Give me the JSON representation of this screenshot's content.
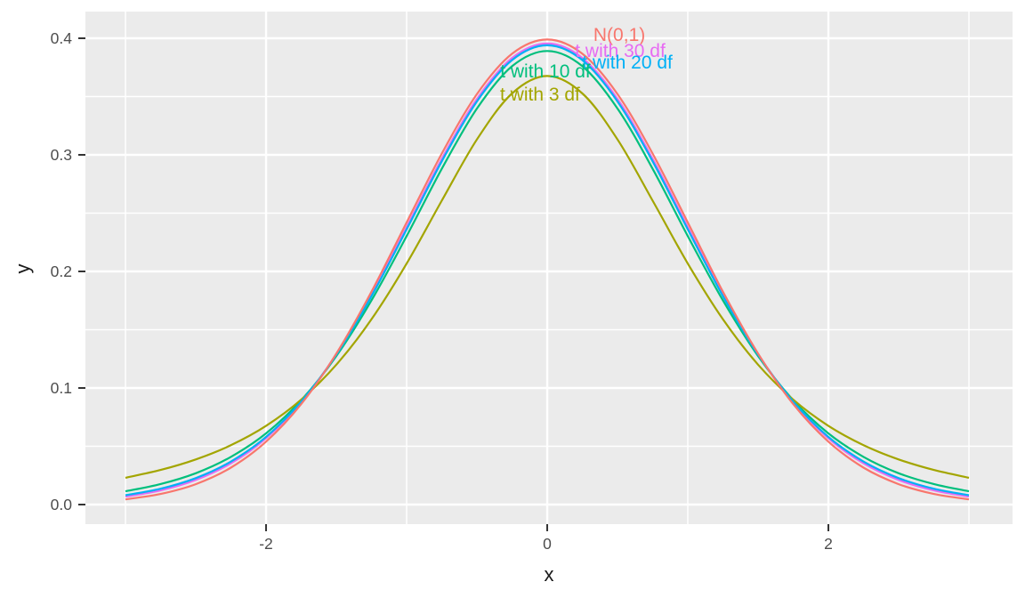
{
  "chart_data": {
    "type": "line",
    "title": "",
    "xlabel": "x",
    "ylabel": "y",
    "xlim": [
      -3.285,
      3.31
    ],
    "ylim": [
      -0.0168,
      0.4229
    ],
    "x_ticks": {
      "values": [
        -2,
        0,
        2
      ],
      "labels": [
        "-2",
        "0",
        "2"
      ]
    },
    "y_ticks": {
      "values": [
        0.0,
        0.1,
        0.2,
        0.3,
        0.4
      ],
      "labels": [
        "0.0",
        "0.1",
        "0.2",
        "0.3",
        "0.4"
      ]
    },
    "x_minor_ticks": [
      -3,
      -1,
      1,
      3
    ],
    "y_minor_ticks": [
      0.05,
      0.15,
      0.25,
      0.35
    ],
    "grid": "on",
    "legend": "none (direct colored annotations)",
    "style": {
      "panel_bg": "#EBEBEB",
      "grid_color": "#FFFFFF",
      "tick_mark_color": "#333333",
      "tick_label_color": "#4D4D4D",
      "axis_title_color": "#1a1a1a"
    },
    "x": [
      -3,
      -2.75,
      -2.5,
      -2.25,
      -2,
      -1.75,
      -1.5,
      -1.25,
      -1,
      -0.75,
      -0.5,
      -0.25,
      0,
      0.25,
      0.5,
      0.75,
      1,
      1.25,
      1.5,
      1.75,
      2,
      2.25,
      2.5,
      2.75,
      3
    ],
    "series": [
      {
        "name": "t with 30 df",
        "color": "#E76BF3",
        "values": [
          0.0068,
          0.0121,
          0.0211,
          0.0353,
          0.0568,
          0.0877,
          0.129,
          0.1801,
          0.238,
          0.2966,
          0.3479,
          0.3831,
          0.3956,
          0.3831,
          0.3479,
          0.2966,
          0.238,
          0.1801,
          0.129,
          0.0877,
          0.0568,
          0.0353,
          0.0211,
          0.0121,
          0.0068
        ]
      },
      {
        "name": "t with 10 df",
        "color": "#00BF7D",
        "values": [
          0.0114,
          0.0176,
          0.0269,
          0.0409,
          0.0611,
          0.0895,
          0.1274,
          0.1751,
          0.2303,
          0.288,
          0.3397,
          0.376,
          0.3891,
          0.376,
          0.3397,
          0.288,
          0.2303,
          0.1751,
          0.1274,
          0.0895,
          0.0611,
          0.0409,
          0.0269,
          0.0176,
          0.0114
        ]
      },
      {
        "name": "t with 3 df",
        "color": "#A3A500",
        "values": [
          0.023,
          0.0297,
          0.0387,
          0.0509,
          0.0675,
          0.09,
          0.12,
          0.1589,
          0.2067,
          0.2607,
          0.3132,
          0.3527,
          0.3676,
          0.3527,
          0.3132,
          0.2607,
          0.2067,
          0.1589,
          0.12,
          0.09,
          0.0675,
          0.0509,
          0.0387,
          0.0297,
          0.023
        ]
      },
      {
        "name": "t with 20 df",
        "color": "#00B0F6",
        "values": [
          0.008,
          0.0136,
          0.0227,
          0.0369,
          0.0581,
          0.0883,
          0.1286,
          0.1788,
          0.2361,
          0.2944,
          0.3458,
          0.3813,
          0.394,
          0.3813,
          0.3458,
          0.2944,
          0.2361,
          0.1788,
          0.1286,
          0.0883,
          0.0581,
          0.0369,
          0.0227,
          0.0136,
          0.008
        ]
      },
      {
        "name": "N(0,1)",
        "color": "#F8766D",
        "values": [
          0.0044,
          0.0091,
          0.0175,
          0.0317,
          0.054,
          0.0862,
          0.1295,
          0.1826,
          0.242,
          0.3011,
          0.3521,
          0.3867,
          0.3989,
          0.3867,
          0.3521,
          0.3011,
          0.242,
          0.1826,
          0.1295,
          0.0862,
          0.054,
          0.0317,
          0.0175,
          0.0091,
          0.0044
        ]
      }
    ],
    "annotations": [
      {
        "text": "N(0,1)",
        "x": 0.513,
        "y": 0.403,
        "color": "#F8766D"
      },
      {
        "text": "t with 30 df",
        "x": 0.519,
        "y": 0.3893,
        "color": "#E76BF3"
      },
      {
        "text": "t with 20 df",
        "x": 0.57,
        "y": 0.3794,
        "color": "#00B0F6"
      },
      {
        "text": "t with 10 df",
        "x": -0.013,
        "y": 0.3718,
        "color": "#00BF7D"
      },
      {
        "text": "t with 3 df",
        "x": -0.051,
        "y": 0.3519,
        "color": "#A3A500"
      }
    ]
  }
}
